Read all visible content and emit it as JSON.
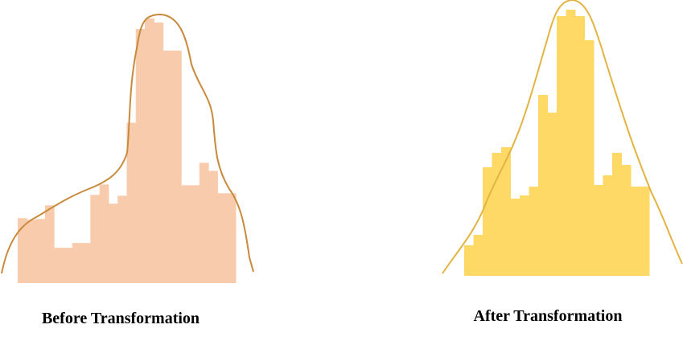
{
  "chart_data": [
    {
      "type": "bar",
      "title": "Before Transformation",
      "color": "#f8cbad",
      "curve_color": "#c88a3c",
      "categories": [
        null,
        null,
        null,
        null,
        null,
        null,
        null,
        null,
        null,
        null,
        null,
        null,
        null,
        null,
        null,
        null,
        null,
        null,
        null,
        null,
        null,
        null,
        null,
        null
      ],
      "values": [
        81,
        79,
        80,
        97,
        44,
        44,
        50,
        50,
        110,
        123,
        99,
        109,
        200,
        317,
        330,
        325,
        290,
        290,
        122,
        122,
        150,
        140,
        112,
        112
      ],
      "ylim": [
        0,
        340
      ]
    },
    {
      "type": "bar",
      "title": "After Transformation",
      "color": "#ffd966",
      "curve_color": "#e2b443",
      "categories": [
        null,
        null,
        null,
        null,
        null,
        null,
        null,
        null,
        null,
        null,
        null,
        null,
        null,
        null,
        null,
        null,
        null,
        null,
        null,
        null
      ],
      "values": [
        38,
        51,
        135,
        153,
        160,
        96,
        100,
        111,
        225,
        203,
        323,
        331,
        323,
        293,
        113,
        125,
        153,
        138,
        111,
        111
      ],
      "ylim": [
        0,
        340
      ]
    }
  ]
}
